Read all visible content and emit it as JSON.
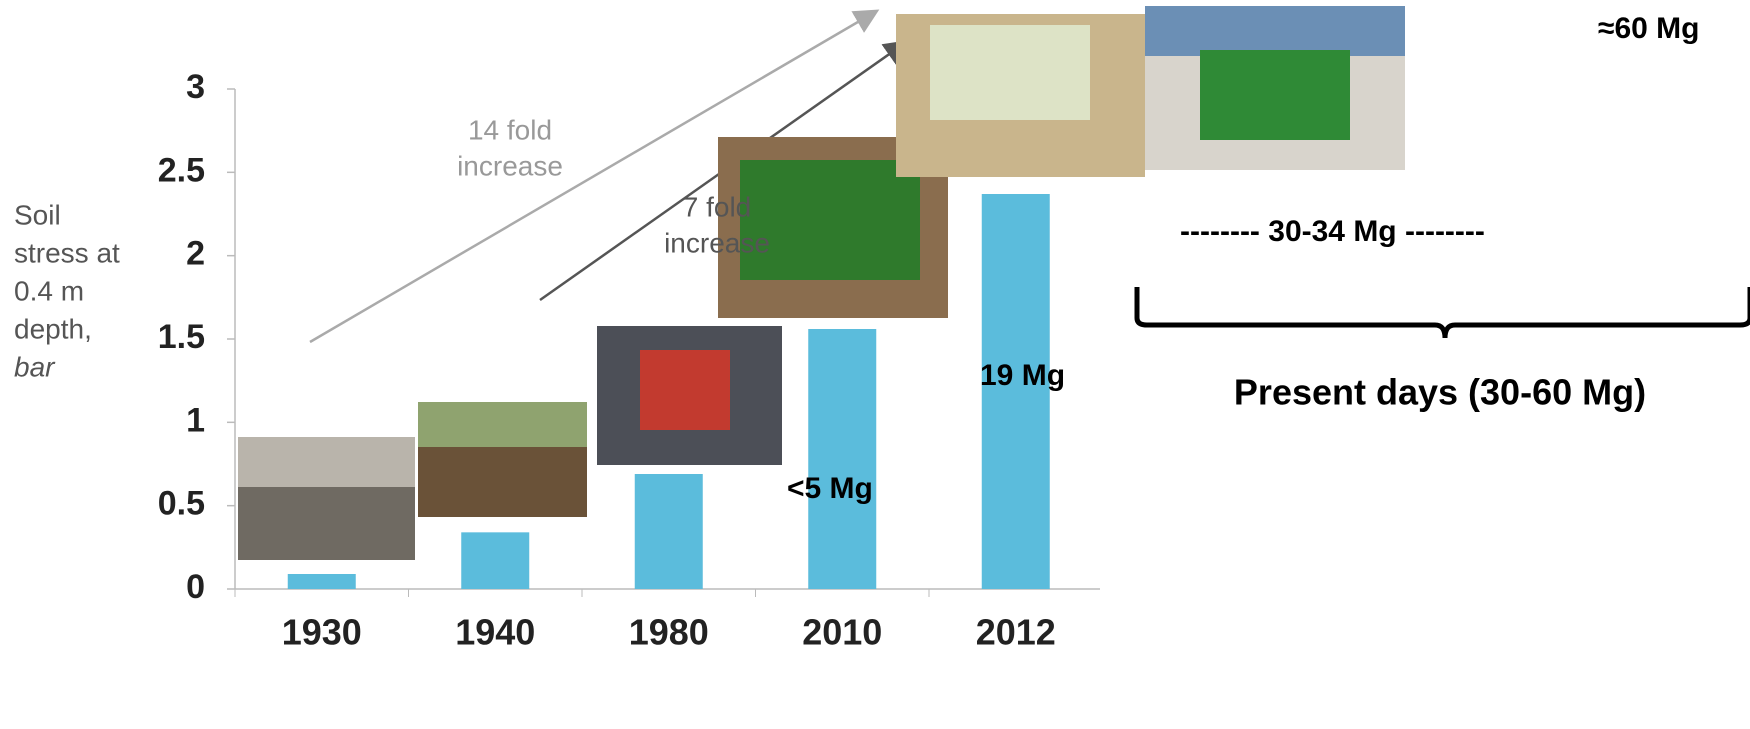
{
  "chart_data": {
    "type": "bar",
    "y_label": [
      "Soil",
      "stress at",
      "0.4 m",
      "depth,",
      "bar"
    ],
    "categories": [
      "1930",
      "1940",
      "1980",
      "2010",
      "2012"
    ],
    "values": [
      0.09,
      0.34,
      0.69,
      1.56,
      2.37
    ],
    "color": "#5bbcdc",
    "ylim": [
      0,
      3
    ],
    "yticks": [
      0,
      0.5,
      1,
      1.5,
      2,
      2.5,
      3
    ],
    "grid": false,
    "annotations": [
      [
        "14 fold",
        "increase"
      ],
      [
        "7 fold",
        "increase"
      ],
      [
        "<5 Mg"
      ],
      [
        "19 Mg"
      ],
      [
        "-------- 30-34 Mg --------"
      ],
      [
        "≈60 Mg"
      ],
      [
        "Present days (30-60 Mg)"
      ]
    ]
  }
}
